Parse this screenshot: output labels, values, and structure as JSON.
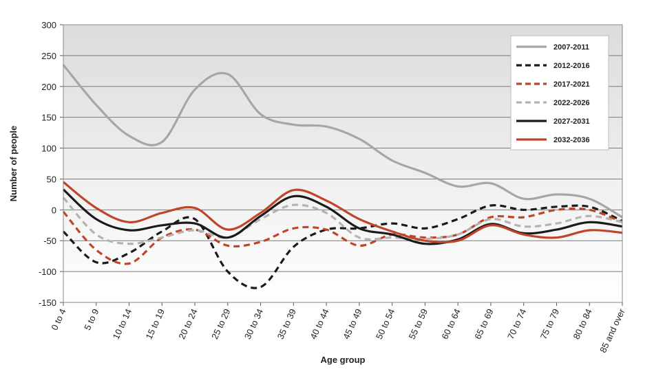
{
  "chart_data": {
    "type": "line",
    "xlabel": "Age group",
    "ylabel": "Number of people",
    "ylim": [
      -150,
      300
    ],
    "yticks": [
      300,
      250,
      200,
      150,
      100,
      50,
      0,
      -50,
      -100,
      -150
    ],
    "grid": "horizontal",
    "legend_position": "top-right",
    "categories": [
      "0 to 4",
      "5 to 9",
      "10 to 14",
      "15 to 19",
      "20 to 24",
      "25 to 29",
      "30 to 34",
      "35 to 39",
      "40 to 44",
      "45 to 49",
      "50 to 54",
      "55 to 59",
      "60 to 64",
      "65 to 69",
      "70 to 74",
      "75 to 79",
      "80 to 84",
      "85 and over"
    ],
    "series": [
      {
        "name": "2007-2011",
        "color": "#a6a6a6",
        "dash": "solid",
        "values": [
          235,
          170,
          120,
          110,
          195,
          220,
          155,
          138,
          135,
          115,
          80,
          60,
          38,
          43,
          18,
          25,
          18,
          -12
        ]
      },
      {
        "name": "2012-2016",
        "color": "#1a1a1a",
        "dash": "dashed",
        "values": [
          -35,
          -85,
          -70,
          -35,
          -15,
          -100,
          -125,
          -60,
          -32,
          -30,
          -22,
          -30,
          -15,
          7,
          0,
          5,
          5,
          -18
        ]
      },
      {
        "name": "2017-2021",
        "color": "#c0442a",
        "dash": "dashed",
        "values": [
          -3,
          -65,
          -87,
          -45,
          -32,
          -58,
          -52,
          -30,
          -32,
          -58,
          -40,
          -45,
          -40,
          -12,
          -12,
          0,
          0,
          -20
        ]
      },
      {
        "name": "2022-2026",
        "color": "#b3b3b3",
        "dash": "dashed",
        "values": [
          20,
          -40,
          -55,
          -45,
          -33,
          -45,
          -15,
          8,
          -5,
          -45,
          -45,
          -47,
          -40,
          -15,
          -27,
          -22,
          -10,
          -20
        ]
      },
      {
        "name": "2027-2031",
        "color": "#1a1a1a",
        "dash": "solid",
        "values": [
          33,
          -15,
          -33,
          -25,
          -22,
          -45,
          -10,
          22,
          5,
          -30,
          -40,
          -55,
          -48,
          -23,
          -38,
          -32,
          -20,
          -27
        ]
      },
      {
        "name": "2032-2036",
        "color": "#c0442a",
        "dash": "solid",
        "values": [
          45,
          3,
          -20,
          -5,
          3,
          -32,
          -5,
          32,
          15,
          -15,
          -35,
          -50,
          -50,
          -25,
          -40,
          -45,
          -33,
          -37
        ]
      }
    ]
  }
}
